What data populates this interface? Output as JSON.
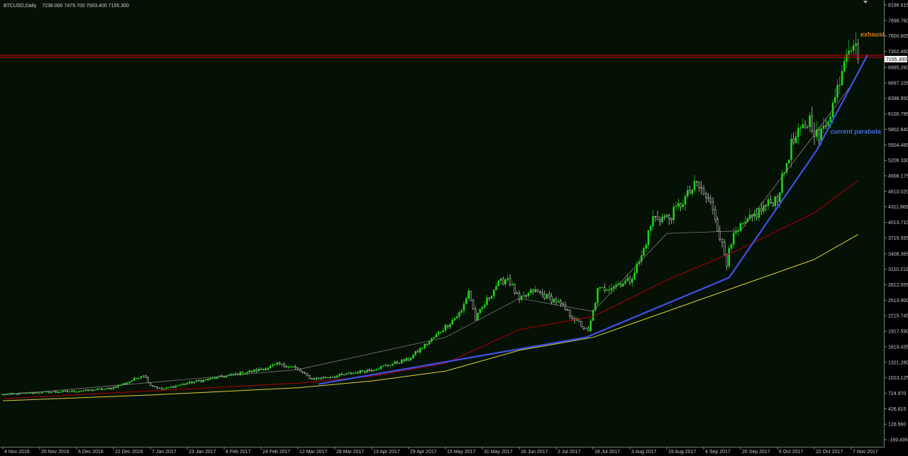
{
  "header": {
    "symbol": "BTCUSD,Daily",
    "ohlc": "7238.000 7479.700 7003.400 7155.300"
  },
  "colors": {
    "background": "#061106",
    "bull_candle": "#22d51c",
    "ma_fast": "#8a8a8a",
    "ma_mid": "#b00000",
    "ma_slow": "#d8d43a",
    "trendline": "#4150e8",
    "horizontal_line": "#d40000",
    "price_marker": "#ffffff",
    "annotation_top": "#e07818",
    "annotation_parabola": "#4c6ae0"
  },
  "chart_data": {
    "type": "candlestick",
    "symbol": "BTCUSD",
    "timeframe": "Daily",
    "last_price": "7155.300",
    "y_ticks": [
      "8196.915",
      "7898.760",
      "7600.605",
      "7302.450",
      "6995.260",
      "6697.105",
      "6398.950",
      "6100.795",
      "5802.640",
      "5504.485",
      "5206.330",
      "4908.175",
      "4610.020",
      "4311.865",
      "4013.710",
      "3715.555",
      "3408.365",
      "3110.210",
      "2812.055",
      "2513.900",
      "2215.745",
      "1917.590",
      "1619.435",
      "1321.280",
      "1023.125",
      "724.970",
      "426.815",
      "128.660",
      "-169.495"
    ],
    "ylim": [
      -169.495,
      8196.915
    ],
    "x_ticks": [
      "4 Nov 2016",
      "20 Nov 2016",
      "6 Dec 2016",
      "22 Dec 2016",
      "7 Jan 2017",
      "23 Jan 2017",
      "8 Feb 2017",
      "24 Feb 2017",
      "12 Mar 2017",
      "28 Mar 2017",
      "13 Apr 2017",
      "29 Apr 2017",
      "15 May 2017",
      "31 May 2017",
      "16 Jun 2017",
      "2 Jul 2017",
      "18 Jul 2017",
      "3 Aug 2017",
      "19 Aug 2017",
      "4 Sep 2017",
      "20 Sep 2017",
      "6 Oct 2017",
      "22 Oct 2017",
      "7 Nov 2017"
    ],
    "price_path": [
      [
        "2016-11-04",
        700
      ],
      [
        "2016-11-20",
        740
      ],
      [
        "2016-12-06",
        765
      ],
      [
        "2016-12-20",
        810
      ],
      [
        "2016-12-28",
        930
      ],
      [
        "2017-01-04",
        1080
      ],
      [
        "2017-01-07",
        880
      ],
      [
        "2017-01-12",
        800
      ],
      [
        "2017-01-23",
        920
      ],
      [
        "2017-02-08",
        1050
      ],
      [
        "2017-02-24",
        1180
      ],
      [
        "2017-03-03",
        1280
      ],
      [
        "2017-03-10",
        1230
      ],
      [
        "2017-03-18",
        1000
      ],
      [
        "2017-03-28",
        1050
      ],
      [
        "2017-04-13",
        1180
      ],
      [
        "2017-04-29",
        1380
      ],
      [
        "2017-05-10",
        1800
      ],
      [
        "2017-05-22",
        2300
      ],
      [
        "2017-05-25",
        2700
      ],
      [
        "2017-05-28",
        2150
      ],
      [
        "2017-06-06",
        2800
      ],
      [
        "2017-06-11",
        2950
      ],
      [
        "2017-06-16",
        2500
      ],
      [
        "2017-06-22",
        2700
      ],
      [
        "2017-07-02",
        2500
      ],
      [
        "2017-07-16",
        1900
      ],
      [
        "2017-07-20",
        2700
      ],
      [
        "2017-08-03",
        2900
      ],
      [
        "2017-08-08",
        3350
      ],
      [
        "2017-08-13",
        4100
      ],
      [
        "2017-08-20",
        4100
      ],
      [
        "2017-09-01",
        4750
      ],
      [
        "2017-09-08",
        4300
      ],
      [
        "2017-09-14",
        3200
      ],
      [
        "2017-09-15",
        3600
      ],
      [
        "2017-09-20",
        3900
      ],
      [
        "2017-09-30",
        4300
      ],
      [
        "2017-10-06",
        4500
      ],
      [
        "2017-10-12",
        5500
      ],
      [
        "2017-10-20",
        6000
      ],
      [
        "2017-10-24",
        5600
      ],
      [
        "2017-10-31",
        6400
      ],
      [
        "2017-11-05",
        7400
      ],
      [
        "2017-11-08",
        7500
      ],
      [
        "2017-11-10",
        7155
      ]
    ],
    "ma_fast_points": [
      [
        "2016-11-04",
        690
      ],
      [
        "2017-01-07",
        930
      ],
      [
        "2017-03-12",
        1180
      ],
      [
        "2017-05-15",
        1800
      ],
      [
        "2017-06-16",
        2550
      ],
      [
        "2017-07-18",
        2300
      ],
      [
        "2017-08-19",
        3800
      ],
      [
        "2017-09-20",
        3850
      ],
      [
        "2017-10-22",
        5700
      ],
      [
        "2017-11-06",
        6600
      ]
    ],
    "ma_mid_points": [
      [
        "2016-11-04",
        620
      ],
      [
        "2017-01-07",
        770
      ],
      [
        "2017-03-12",
        920
      ],
      [
        "2017-04-13",
        1050
      ],
      [
        "2017-05-15",
        1300
      ],
      [
        "2017-06-16",
        1950
      ],
      [
        "2017-07-18",
        2200
      ],
      [
        "2017-08-19",
        2900
      ],
      [
        "2017-09-20",
        3500
      ],
      [
        "2017-10-22",
        4200
      ],
      [
        "2017-11-10",
        4820
      ]
    ],
    "ma_slow_points": [
      [
        "2016-11-04",
        580
      ],
      [
        "2017-01-07",
        690
      ],
      [
        "2017-03-12",
        830
      ],
      [
        "2017-04-13",
        960
      ],
      [
        "2017-05-15",
        1150
      ],
      [
        "2017-06-16",
        1550
      ],
      [
        "2017-07-18",
        1800
      ],
      [
        "2017-08-19",
        2300
      ],
      [
        "2017-09-20",
        2800
      ],
      [
        "2017-10-22",
        3300
      ],
      [
        "2017-11-10",
        3780
      ]
    ],
    "trendline_points": [
      [
        "2017-03-21",
        900
      ],
      [
        "2017-07-15",
        1800
      ],
      [
        "2017-09-15",
        2950
      ],
      [
        "2017-10-23",
        5400
      ],
      [
        "2017-11-14",
        7230
      ]
    ],
    "horizontal_lines": [
      7228,
      7190
    ],
    "annotations": [
      {
        "text": "exhaustion top?",
        "date": "2017-11-11",
        "price": 7590,
        "color": "#e07818"
      },
      {
        "text": "current parabola",
        "date": "2017-10-29",
        "price": 5720,
        "color": "#4c6ae0"
      }
    ]
  }
}
